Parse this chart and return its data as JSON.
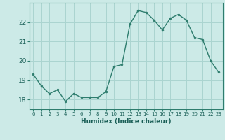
{
  "x": [
    0,
    1,
    2,
    3,
    4,
    5,
    6,
    7,
    8,
    9,
    10,
    11,
    12,
    13,
    14,
    15,
    16,
    17,
    18,
    19,
    20,
    21,
    22,
    23
  ],
  "y": [
    19.3,
    18.7,
    18.3,
    18.5,
    17.9,
    18.3,
    18.1,
    18.1,
    18.1,
    18.4,
    19.7,
    19.8,
    21.9,
    22.6,
    22.5,
    22.1,
    21.6,
    22.2,
    22.4,
    22.1,
    21.2,
    21.1,
    20.0,
    19.4
  ],
  "xlabel": "Humidex (Indice chaleur)",
  "ylim": [
    17.5,
    23.0
  ],
  "xlim": [
    -0.5,
    23.5
  ],
  "yticks": [
    18,
    19,
    20,
    21,
    22
  ],
  "xticks": [
    0,
    1,
    2,
    3,
    4,
    5,
    6,
    7,
    8,
    9,
    10,
    11,
    12,
    13,
    14,
    15,
    16,
    17,
    18,
    19,
    20,
    21,
    22,
    23
  ],
  "line_color": "#2e7d6e",
  "marker_color": "#2e7d6e",
  "bg_color": "#cceae7",
  "grid_color": "#aad4d0",
  "tick_label_color": "#1a5f57",
  "axis_color": "#2e7d6e"
}
